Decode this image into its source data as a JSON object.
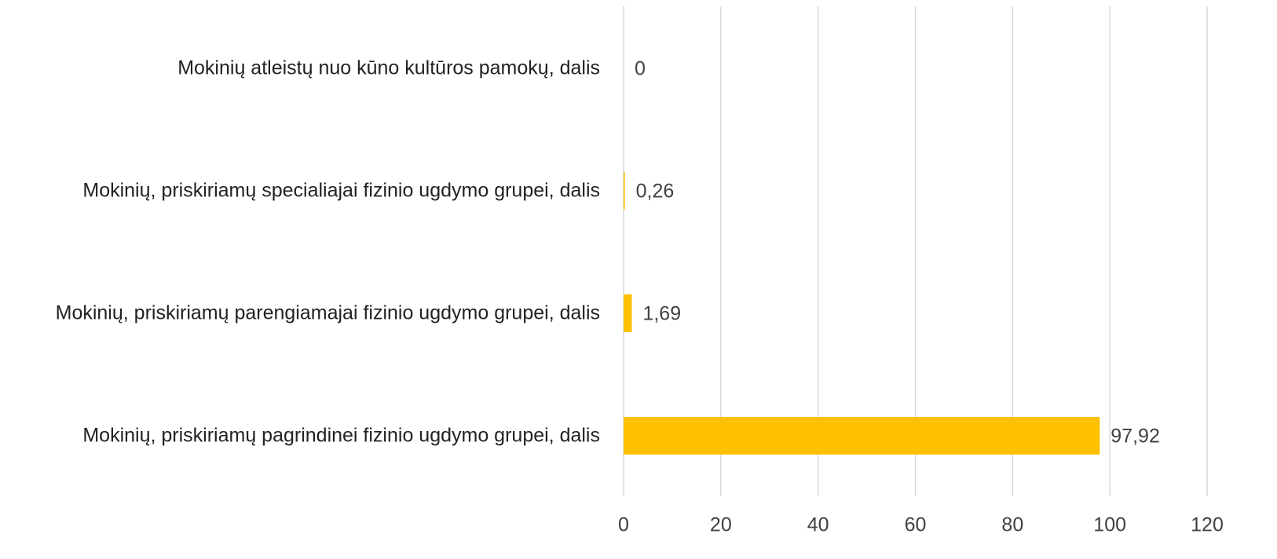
{
  "chart_data": {
    "type": "bar",
    "orientation": "horizontal",
    "categories": [
      "Mokinių atleistų nuo kūno kultūros pamokų, dalis",
      "Mokinių, priskiriamų specialiajai fizinio ugdymo grupei, dalis",
      "Mokinių, priskiriamų parengiamajai fizinio ugdymo grupei, dalis",
      "Mokinių, priskiriamų pagrindinei fizinio ugdymo grupei, dalis"
    ],
    "values": [
      0,
      0.26,
      1.69,
      97.92
    ],
    "value_labels": [
      "0",
      "0,26",
      "1,69",
      "97,92"
    ],
    "color": "#ffc000",
    "xlim": [
      0,
      120
    ],
    "xticks": [
      0,
      20,
      40,
      60,
      80,
      100,
      120
    ],
    "grid": true
  }
}
